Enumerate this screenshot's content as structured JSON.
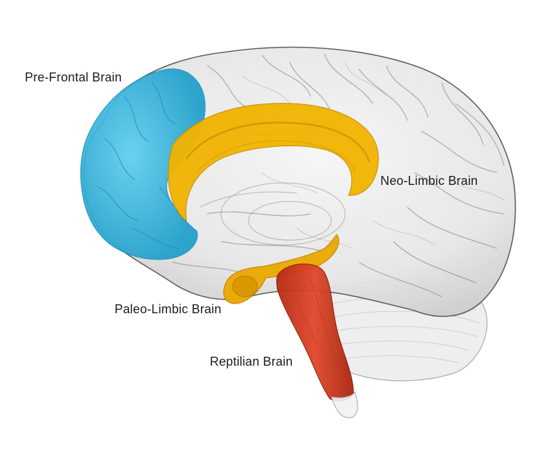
{
  "labels": {
    "prefrontal": "Pre-Frontal Brain",
    "neolimbic": "Neo-Limbic Brain",
    "paleolimbic": "Paleo-Limbic Brain",
    "reptilian": "Reptilian Brain"
  },
  "colors": {
    "prefrontal": "#2cb6de",
    "neolimbic": "#f0b400",
    "paleolimbic": "#e9a800",
    "reptilian": "#d63a1e",
    "brain_outline": "#5a5a5a",
    "brain_fill": "#e8e8e8"
  }
}
